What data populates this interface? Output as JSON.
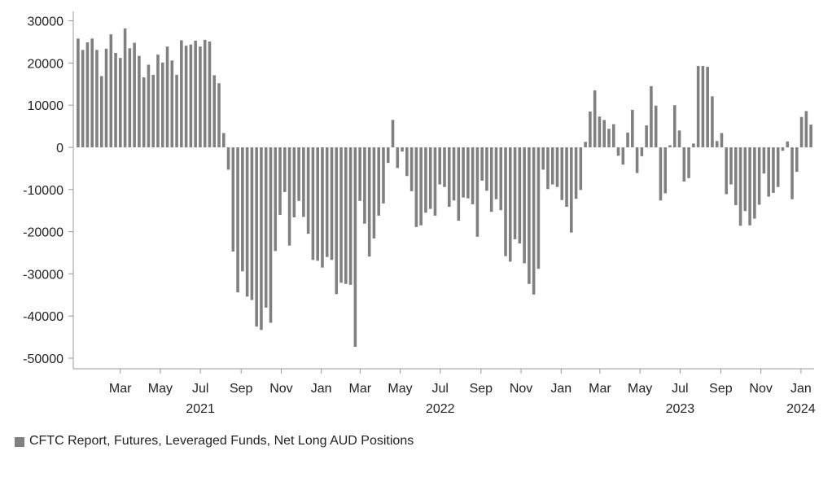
{
  "chart_data": {
    "type": "bar",
    "ylim": [
      -52000,
      32000
    ],
    "yticks": [
      30000,
      20000,
      10000,
      0,
      -10000,
      -20000,
      -30000,
      -40000,
      -50000
    ],
    "ytick_labels": [
      "30000",
      "20000",
      "10000",
      "0",
      "-10000",
      "-20000",
      "-30000",
      "-40000",
      "-50000"
    ],
    "x_start": "2021-01-05",
    "x_end": "2024-01-30",
    "month_ticks": [
      {
        "label": "Mar",
        "date": "2021-03-15"
      },
      {
        "label": "May",
        "date": "2021-05-15"
      },
      {
        "label": "Jul",
        "date": "2021-07-15"
      },
      {
        "label": "Sep",
        "date": "2021-09-15"
      },
      {
        "label": "Nov",
        "date": "2021-11-15"
      },
      {
        "label": "Jan",
        "date": "2022-01-15"
      },
      {
        "label": "Mar",
        "date": "2022-03-15"
      },
      {
        "label": "May",
        "date": "2022-05-15"
      },
      {
        "label": "Jul",
        "date": "2022-07-15"
      },
      {
        "label": "Sep",
        "date": "2022-09-15"
      },
      {
        "label": "Nov",
        "date": "2022-11-15"
      },
      {
        "label": "Jan",
        "date": "2023-01-15"
      },
      {
        "label": "Mar",
        "date": "2023-03-15"
      },
      {
        "label": "May",
        "date": "2023-05-15"
      },
      {
        "label": "Jul",
        "date": "2023-07-15"
      },
      {
        "label": "Sep",
        "date": "2023-09-15"
      },
      {
        "label": "Nov",
        "date": "2023-11-15"
      },
      {
        "label": "Jan",
        "date": "2024-01-15"
      }
    ],
    "year_ticks": [
      {
        "label": "2021",
        "date": "2021-07-15"
      },
      {
        "label": "2022",
        "date": "2022-07-15"
      },
      {
        "label": "2023",
        "date": "2023-07-15"
      },
      {
        "label": "2024",
        "date": "2024-01-15"
      }
    ],
    "series": [
      {
        "name": "CFTC Report, Futures, Leveraged Funds, Net Long AUD Positions",
        "color": "#808080",
        "values": [
          25800,
          23100,
          24900,
          25800,
          23100,
          16900,
          23400,
          26800,
          22400,
          21200,
          28200,
          23500,
          24800,
          21700,
          16600,
          19600,
          17200,
          22000,
          20100,
          23900,
          20600,
          17200,
          25400,
          24100,
          24400,
          25300,
          23900,
          25500,
          25100,
          17100,
          15200,
          3400,
          -5300,
          -24700,
          -34400,
          -29400,
          -35400,
          -36200,
          -42500,
          -43300,
          -38000,
          -41600,
          -24600,
          -16000,
          -10600,
          -23300,
          -16600,
          -12700,
          -16500,
          -20500,
          -26700,
          -26900,
          -28500,
          -26000,
          -26700,
          -34800,
          -32100,
          -32400,
          -32600,
          -47300,
          -12700,
          -18100,
          -25900,
          -21600,
          -16200,
          -13300,
          -3700,
          6500,
          -4900,
          -1000,
          -6800,
          -10400,
          -18900,
          -18500,
          -15500,
          -14600,
          -16200,
          -8800,
          -9400,
          -14100,
          -12600,
          -17400,
          -11900,
          -12100,
          -13500,
          -21200,
          -7900,
          -10300,
          -15300,
          -12300,
          -14900,
          -25800,
          -27100,
          -21800,
          -22800,
          -27500,
          -32400,
          -34900,
          -28800,
          -5300,
          -9900,
          -8800,
          -9400,
          -12500,
          -14100,
          -20200,
          -12200,
          -10100,
          1300,
          8500,
          13500,
          7300,
          6500,
          4400,
          5500,
          -2000,
          -4100,
          3500,
          8900,
          -6100,
          -2100,
          5200,
          14500,
          9900,
          -12600,
          -10900,
          500,
          10000,
          4000,
          -8100,
          -7300,
          900,
          19300,
          19300,
          19100,
          12100,
          1500,
          3400,
          -11100,
          -8800,
          -13700,
          -18600,
          -15100,
          -18500,
          -16900,
          -13600,
          -6200,
          -11700,
          -10800,
          -9400,
          -800,
          1400,
          -12300,
          -5800,
          7200,
          8600,
          5400
        ]
      }
    ]
  },
  "legend": {
    "label": "CFTC Report, Futures, Leveraged Funds, Net Long AUD Positions",
    "color": "#808080"
  }
}
